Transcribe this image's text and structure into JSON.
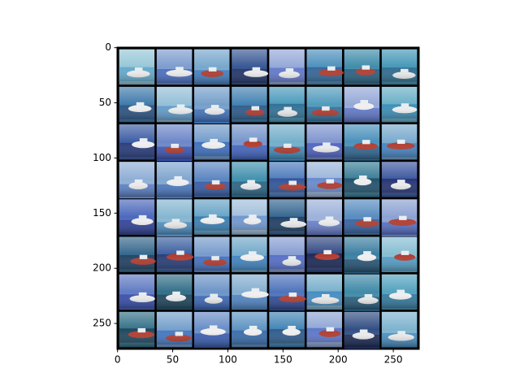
{
  "chart_data": {
    "type": "image",
    "xlim": [
      -0.5,
      273.5
    ],
    "ylim": [
      273.5,
      -0.5
    ],
    "xticks": [
      0,
      50,
      100,
      150,
      200,
      250
    ],
    "yticks": [
      0,
      50,
      100,
      150,
      200,
      250
    ]
  }
}
